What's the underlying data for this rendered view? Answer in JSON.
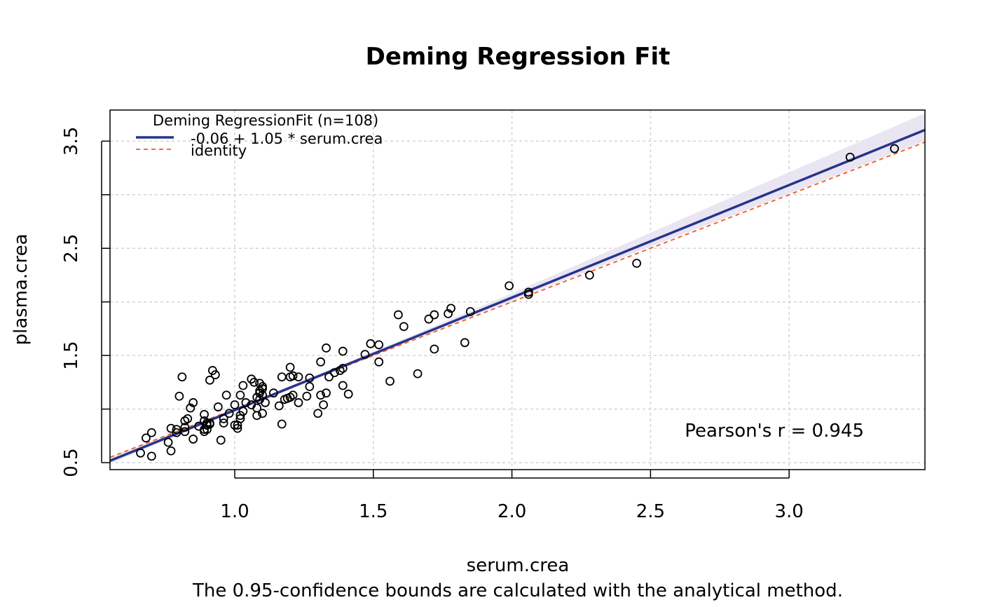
{
  "chart_data": {
    "type": "scatter",
    "title": "Deming Regression Fit",
    "xlabel": "serum.crea",
    "ylabel": "plasma.crea",
    "subtitle": "The 0.95-confidence bounds are calculated with the analytical method.",
    "xlim": [
      0.55,
      3.49
    ],
    "ylim": [
      0.435,
      3.79
    ],
    "xticks": [
      1.0,
      1.5,
      2.0,
      2.5,
      3.0
    ],
    "xtick_labels": [
      "1.0",
      "1.5",
      "2.0",
      "2.5",
      "3.0"
    ],
    "yticks": [
      0.5,
      1.0,
      1.5,
      2.0,
      2.5,
      3.0,
      3.5
    ],
    "ytick_labels": [
      "0.5",
      "",
      "1.5",
      "",
      "2.5",
      "",
      "3.5"
    ],
    "grid": true,
    "legend": {
      "position": "top-left",
      "title": "Deming RegressionFit (n=108)",
      "entries": [
        {
          "label": "-0.06 + 1.05 * serum.crea",
          "color": "#27348b",
          "style": "solid"
        },
        {
          "label": "identity",
          "color": "#f05a22",
          "style": "dashed"
        }
      ]
    },
    "annotation": "Pearson's r = 0.945",
    "fit": {
      "intercept": -0.06,
      "slope": 1.05,
      "color": "#27348b"
    },
    "identity": {
      "intercept": 0,
      "slope": 1,
      "color": "#f05a22"
    },
    "confidence_band": {
      "color": "#e6e0f0",
      "x": [
        0.55,
        1.0,
        1.5,
        2.0,
        2.5,
        3.0,
        3.49
      ],
      "lower": [
        0.49,
        0.975,
        1.495,
        2.01,
        2.515,
        3.01,
        3.5
      ],
      "upper": [
        0.55,
        1.005,
        1.535,
        2.08,
        2.645,
        3.21,
        3.76
      ]
    },
    "points": {
      "x": [
        0.66,
        0.7,
        0.68,
        0.7,
        0.77,
        0.76,
        0.77,
        0.8,
        0.81,
        0.84,
        0.85,
        0.82,
        0.83,
        0.82,
        0.82,
        0.85,
        0.79,
        0.79,
        0.87,
        0.89,
        0.89,
        0.89,
        0.89,
        0.9,
        0.9,
        0.91,
        0.9,
        0.91,
        0.94,
        0.92,
        0.93,
        0.91,
        0.95,
        0.96,
        0.96,
        0.98,
        0.97,
        1.0,
        1.02,
        1.01,
        1.02,
        1.0,
        1.01,
        1.02,
        1.03,
        1.03,
        1.04,
        1.06,
        1.07,
        1.06,
        1.08,
        1.08,
        1.08,
        1.09,
        1.09,
        1.09,
        1.09,
        1.1,
        1.1,
        1.1,
        1.11,
        1.1,
        1.14,
        1.17,
        1.18,
        1.16,
        1.17,
        1.19,
        1.2,
        1.2,
        1.2,
        1.21,
        1.21,
        1.23,
        1.23,
        1.26,
        1.27,
        1.27,
        1.3,
        1.31,
        1.31,
        1.32,
        1.33,
        1.33,
        1.34,
        1.36,
        1.38,
        1.39,
        1.39,
        1.39,
        1.41,
        1.47,
        1.49,
        1.52,
        1.52,
        1.56,
        1.59,
        1.61,
        1.66,
        1.7,
        1.72,
        1.72,
        1.77,
        1.78,
        1.83,
        1.85,
        1.99,
        2.06,
        2.06,
        2.28,
        2.45,
        3.22,
        3.38
      ],
      "y": [
        0.59,
        0.56,
        0.73,
        0.78,
        0.82,
        0.69,
        0.61,
        1.12,
        1.3,
        1.01,
        1.06,
        0.89,
        0.91,
        0.79,
        0.83,
        0.72,
        0.78,
        0.81,
        0.84,
        0.89,
        0.95,
        0.79,
        0.81,
        0.85,
        0.87,
        0.86,
        0.81,
        0.87,
        1.02,
        1.36,
        1.32,
        1.27,
        0.71,
        0.87,
        0.91,
        0.96,
        1.13,
        1.04,
        1.13,
        0.82,
        0.91,
        0.85,
        0.85,
        0.94,
        0.98,
        1.22,
        1.06,
        1.28,
        1.25,
        1.04,
        1.01,
        1.11,
        0.94,
        1.24,
        1.17,
        1.09,
        1.15,
        1.19,
        0.96,
        1.13,
        1.06,
        1.21,
        1.15,
        1.3,
        1.09,
        1.03,
        0.86,
        1.1,
        1.39,
        1.3,
        1.11,
        1.13,
        1.31,
        1.06,
        1.3,
        1.12,
        1.29,
        1.21,
        0.96,
        1.44,
        1.13,
        1.04,
        1.15,
        1.57,
        1.3,
        1.34,
        1.36,
        1.38,
        1.54,
        1.22,
        1.14,
        1.51,
        1.61,
        1.6,
        1.44,
        1.26,
        1.88,
        1.77,
        1.33,
        1.84,
        1.88,
        1.56,
        1.89,
        1.94,
        1.62,
        1.91,
        2.15,
        2.09,
        2.07,
        2.25,
        2.36,
        3.35,
        3.43
      ]
    }
  }
}
